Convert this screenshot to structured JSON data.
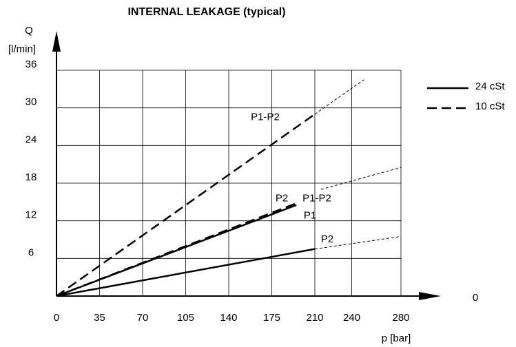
{
  "chart_data": {
    "type": "line",
    "title": "INTERNAL LEAKAGE (typical)",
    "y_label": [
      "Q",
      "[l/min]"
    ],
    "x_label": "p [bar]",
    "xlim": [
      0,
      280
    ],
    "ylim": [
      0,
      36
    ],
    "xticks": [
      0,
      35,
      70,
      105,
      140,
      175,
      210,
      240,
      280
    ],
    "yticks": [
      0,
      6,
      12,
      18,
      24,
      30,
      36
    ],
    "grid": true,
    "legend": [
      {
        "name": "24 cSt",
        "style": "solid"
      },
      {
        "name": "10 cSt",
        "style": "dashed"
      }
    ],
    "series": [
      {
        "style": "solid",
        "x": [
          0,
          210
        ],
        "values": [
          0,
          7.5
        ]
      },
      {
        "style": "thin-dashed",
        "x": [
          210,
          280
        ],
        "values": [
          7.5,
          9.5
        ]
      },
      {
        "style": "solid",
        "x": [
          0,
          195
        ],
        "values": [
          0,
          14.5
        ]
      },
      {
        "style": "dashed",
        "x": [
          0,
          195
        ],
        "values": [
          0,
          14.8
        ]
      },
      {
        "style": "thin-dashed",
        "x": [
          215,
          280
        ],
        "values": [
          17,
          20.5
        ]
      },
      {
        "style": "dashed",
        "x": [
          0,
          210
        ],
        "values": [
          0,
          29
        ]
      },
      {
        "style": "thin-dashed",
        "x": [
          210,
          250
        ],
        "values": [
          29,
          34.5
        ]
      }
    ],
    "annotations": [
      {
        "text": "P1-P2",
        "x": 158,
        "y": 28.5
      },
      {
        "text": "P2",
        "x": 178,
        "y": 15.5
      },
      {
        "text": "P1-P2",
        "x": 200,
        "y": 15.5
      },
      {
        "text": "P1",
        "x": 201,
        "y": 12.8
      },
      {
        "text": "P2",
        "x": 215,
        "y": 9
      }
    ]
  }
}
